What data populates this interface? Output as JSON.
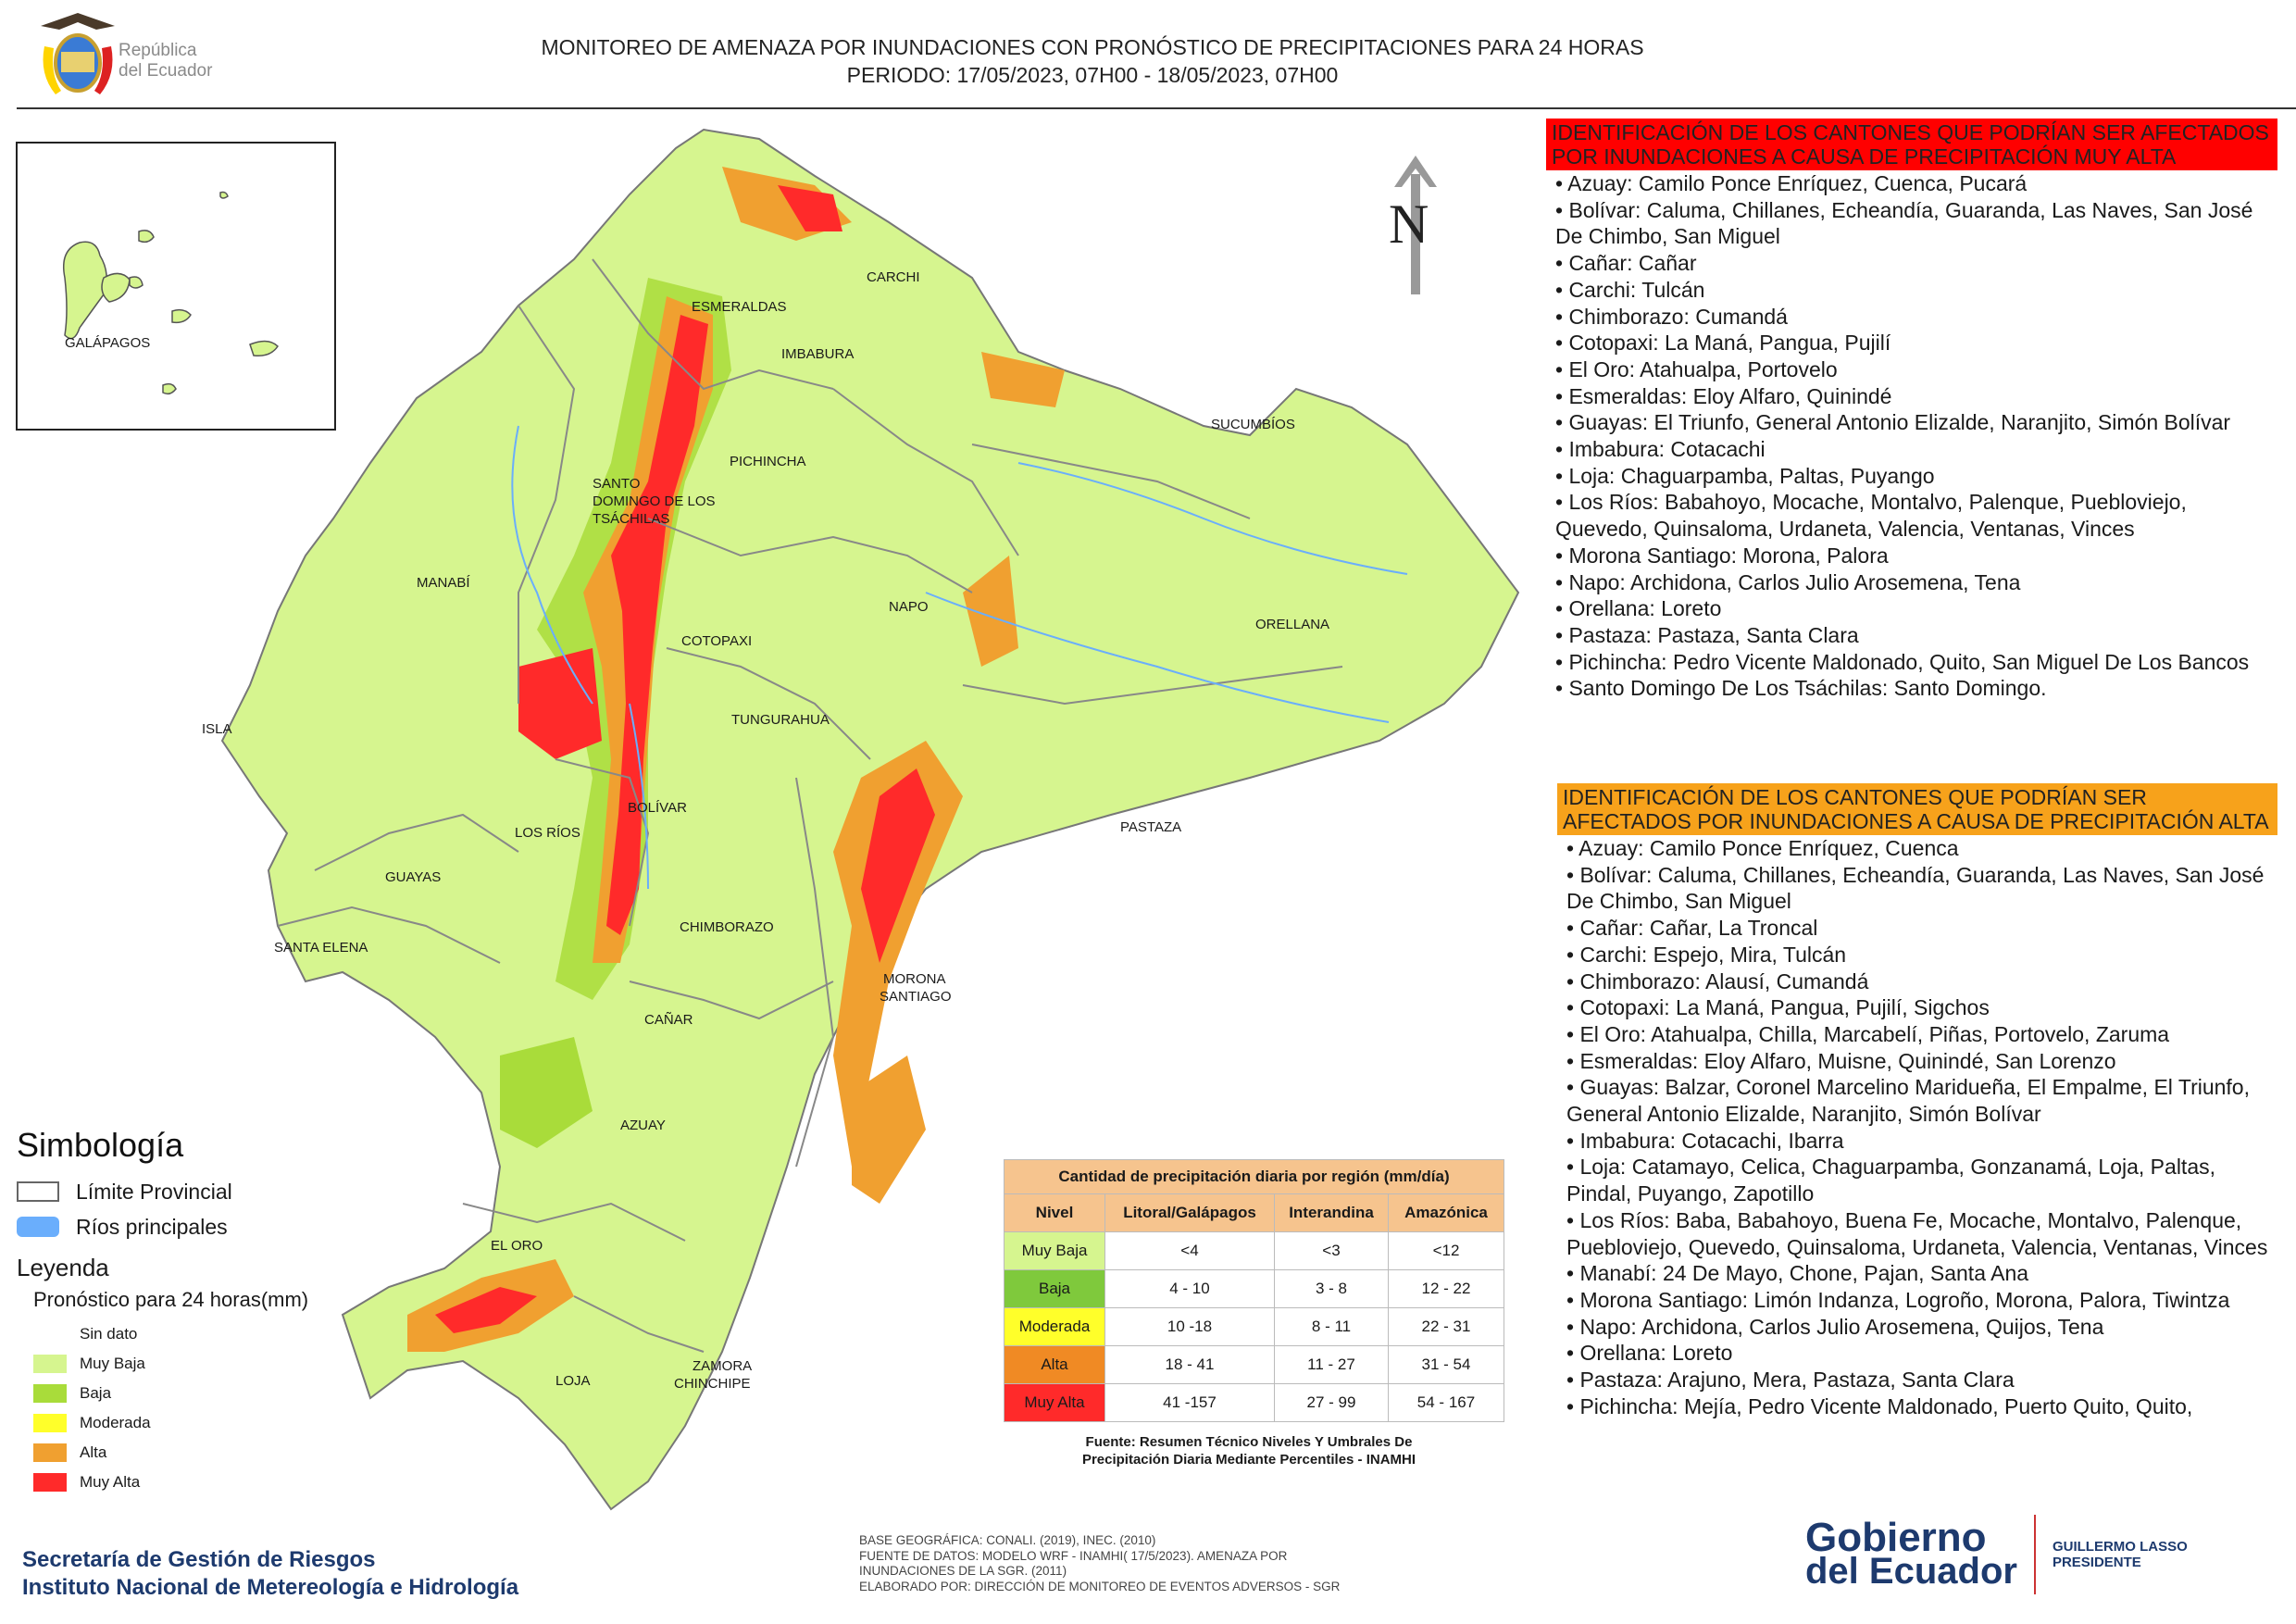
{
  "header": {
    "title_line1": "MONITOREO DE AMENAZA POR INUNDACIONES  CON PRONÓSTICO DE  PRECIPITACIONES PARA 24 HORAS",
    "title_line2": "PERIODO: 17/05/2023, 07H00 - 18/05/2023, 07H00",
    "logo_text_line1": "República",
    "logo_text_line2": "del Ecuador"
  },
  "map": {
    "north_label": "N",
    "labels": {
      "galapagos": "GALÁPAGOS",
      "carchi": "CARCHI",
      "esmeraldas": "ESMERALDAS",
      "imbabura": "IMBABURA",
      "sucumbios": "SUCUMBÍOS",
      "pichincha": "PICHINCHA",
      "santo_domingo_1": "SANTO",
      "santo_domingo_2": "DOMINGO DE LOS",
      "santo_domingo_3": "TSÁCHILAS",
      "manabi": "MANABÍ",
      "napo": "NAPO",
      "orellana": "ORELLANA",
      "cotopaxi": "COTOPAXI",
      "tungurahua": "TUNGURAHUA",
      "isla": "ISLA",
      "bolivar": "BOLÍVAR",
      "los_rios": "LOS RÍOS",
      "pastaza": "PASTAZA",
      "guayas": "GUAYAS",
      "chimborazo": "CHIMBORAZO",
      "santa_elena": "SANTA ELENA",
      "morona_1": "MORONA",
      "morona_2": "SANTIAGO",
      "canar": "CAÑAR",
      "azuay": "AZUAY",
      "el_oro": "EL ORO",
      "zamora_1": "ZAMORA",
      "zamora_2": "CHINCHIPE",
      "loja": "LOJA"
    }
  },
  "colors": {
    "sin_dato": "#ffffff",
    "muy_baja": "#d6f58f",
    "baja": "#a9dc3a",
    "moderada": "#ffff2a",
    "alta": "#f0a030",
    "muy_alta": "#ff2a2a",
    "river": "#6aaefc",
    "header_muy_alta": "#ff0000",
    "header_alta": "#f7a21b"
  },
  "legend": {
    "simbologia_title": "Simbología",
    "limite_provincial": "Límite Provincial",
    "rios_principales": "Ríos principales",
    "leyenda_title": "Leyenda",
    "pronostico_label": "Pronóstico para 24 horas(mm)",
    "items": [
      "Sin dato",
      "Muy Baja",
      "Baja",
      "Moderada",
      "Alta",
      "Muy Alta"
    ]
  },
  "precip_table": {
    "caption": "Cantidad de precipitación diaria por región (mm/día)",
    "headers": [
      "Nivel",
      "Litoral/Galápagos",
      "Interandina",
      "Amazónica"
    ],
    "rows": [
      [
        "Muy Baja",
        "<4",
        "<3",
        "<12"
      ],
      [
        "Baja",
        "4 - 10",
        "3 - 8",
        "12 - 22"
      ],
      [
        "Moderada",
        "10 -18",
        "8 - 11",
        "22 - 31"
      ],
      [
        "Alta",
        "18 - 41",
        "11 - 27",
        "31 - 54"
      ],
      [
        "Muy Alta",
        "41 -157",
        "27 - 99",
        "54 - 167"
      ]
    ],
    "source_line1": "Fuente: Resumen Técnico Niveles Y Umbrales De",
    "source_line2": "Precipitación Diaria Mediante Percentiles - INAMHI"
  },
  "muy_alta_section": {
    "header": "IDENTIFICACIÓN DE LOS CANTONES QUE PODRÍAN SER AFECTADOS POR INUNDACIONES  A CAUSA DE PRECIPITACIÓN MUY ALTA",
    "items": [
      "• Azuay: Camilo Ponce Enríquez, Cuenca, Pucará",
      "• Bolívar: Caluma, Chillanes, Echeandía, Guaranda, Las Naves, San José De Chimbo, San Miguel",
      "• Cañar: Cañar",
      "• Carchi: Tulcán",
      "• Chimborazo: Cumandá",
      "• Cotopaxi: La Maná, Pangua, Pujilí",
      "• El Oro: Atahualpa, Portovelo",
      "• Esmeraldas: Eloy Alfaro, Quinindé",
      "• Guayas: El Triunfo, General Antonio Elizalde, Naranjito, Simón Bolívar",
      "• Imbabura: Cotacachi",
      "• Loja: Chaguarpamba, Paltas, Puyango",
      "• Los Ríos: Babahoyo, Mocache, Montalvo, Palenque, Puebloviejo, Quevedo, Quinsaloma, Urdaneta, Valencia, Ventanas, Vinces",
      "• Morona Santiago: Morona, Palora",
      "• Napo: Archidona, Carlos Julio Arosemena, Tena",
      "• Orellana: Loreto",
      "• Pastaza: Pastaza, Santa Clara",
      "• Pichincha: Pedro Vicente Maldonado, Quito, San Miguel De Los Bancos",
      "• Santo Domingo De Los Tsáchilas: Santo Domingo."
    ]
  },
  "alta_section": {
    "header": "IDENTIFICACIÓN DE LOS CANTONES QUE  PODRÍAN SER AFECTADOS POR INUNDACIONES  A CAUSA DE PRECIPITACIÓN ALTA",
    "items": [
      "• Azuay: Camilo Ponce Enríquez, Cuenca",
      "• Bolívar: Caluma, Chillanes, Echeandía, Guaranda, Las Naves, San José De Chimbo, San Miguel",
      "• Cañar: Cañar, La Troncal",
      "• Carchi: Espejo, Mira, Tulcán",
      "• Chimborazo: Alausí, Cumandá",
      "• Cotopaxi: La Maná, Pangua, Pujilí, Sigchos",
      "• El Oro: Atahualpa, Chilla, Marcabelí, Piñas, Portovelo, Zaruma",
      "• Esmeraldas: Eloy Alfaro, Muisne, Quinindé, San Lorenzo",
      "• Guayas: Balzar, Coronel Marcelino Maridueña, El Empalme, El Triunfo, General Antonio Elizalde, Naranjito, Simón Bolívar",
      "• Imbabura: Cotacachi, Ibarra",
      "• Loja: Catamayo, Celica, Chaguarpamba, Gonzanamá, Loja, Paltas, Pindal, Puyango, Zapotillo",
      "• Los Ríos: Baba, Babahoyo, Buena Fe, Mocache, Montalvo, Palenque, Puebloviejo, Quevedo, Quinsaloma, Urdaneta, Valencia, Ventanas, Vinces",
      "• Manabí: 24 De Mayo, Chone, Pajan, Santa Ana",
      "• Morona Santiago: Limón Indanza, Logroño, Morona, Palora, Tiwintza",
      "• Napo: Archidona, Carlos Julio Arosemena, Quijos, Tena",
      "• Orellana: Loreto",
      "• Pastaza: Arajuno, Mera, Pastaza, Santa Clara",
      "• Pichincha: Mejía, Pedro Vicente Maldonado, Puerto Quito, Quito,"
    ]
  },
  "footer": {
    "left_line1": "Secretaría de Gestión de Riesgos",
    "left_line2": "Instituto Nacional de Metereología e Hidrología",
    "center_line1": "BASE GEOGRÁFICA: CONALI. (2019), INEC. (2010)",
    "center_line2": "FUENTE DE DATOS: MODELO WRF - INAMHI( 17/5/2023).  AMENAZA POR",
    "center_line3": "INUNDACIONES DE LA SGR. (2011)",
    "center_line4": "ELABORADO POR: DIRECCIÓN DE MONITOREO DE EVENTOS ADVERSOS - SGR",
    "gob_line1": "Gobierno",
    "gob_line2": "del Ecuador",
    "president_line1": "GUILLERMO LASSO",
    "president_line2": "PRESIDENTE"
  }
}
